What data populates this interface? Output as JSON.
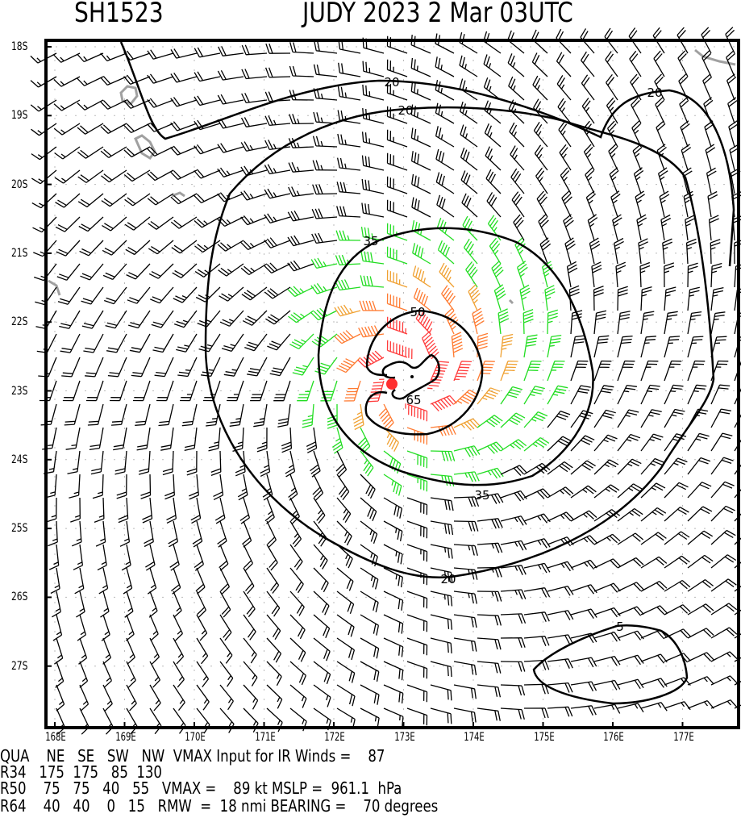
{
  "header": {
    "storm_id": "SH1523",
    "storm_title": "JUDY 2023  2 Mar 03UTC"
  },
  "lat_labels": [
    "18S",
    "19S",
    "20S",
    "21S",
    "22S",
    "23S",
    "24S",
    "25S",
    "26S",
    "27S"
  ],
  "lon_labels": [
    "168E",
    "169E",
    "170E",
    "171E",
    "172E",
    "173E",
    "174E",
    "175E",
    "176E",
    "177E"
  ],
  "contour_labels": {
    "c20a": "20",
    "c20b": "20",
    "c20c": "20",
    "c20d": "20",
    "c35a": "35",
    "c35b": "35",
    "c50": "50",
    "c65": "65",
    "c5": "5"
  },
  "colors": {
    "calm": "#000000",
    "gale": "#22dd22",
    "storm": "#f0a030",
    "strong": "#ff7a30",
    "hurricane": "#ff3b3b",
    "center": "#ff3030",
    "land": "#a0a0a0"
  },
  "storm": {
    "vmax_kt": 89,
    "rmw_nmi": 18
  },
  "info": {
    "row0": "QUA    NE   SE   SW   NW  VMAX Input for IR Winds =    87",
    "row1": "R34   175  175   85  130",
    "row2": "R50    75   75   40   55   VMAX =    89 kt MSLP =  961.1  hPa",
    "row3": "R64    40   40    0   15   RMW  =  18 nmi BEARING =    70 degrees"
  }
}
